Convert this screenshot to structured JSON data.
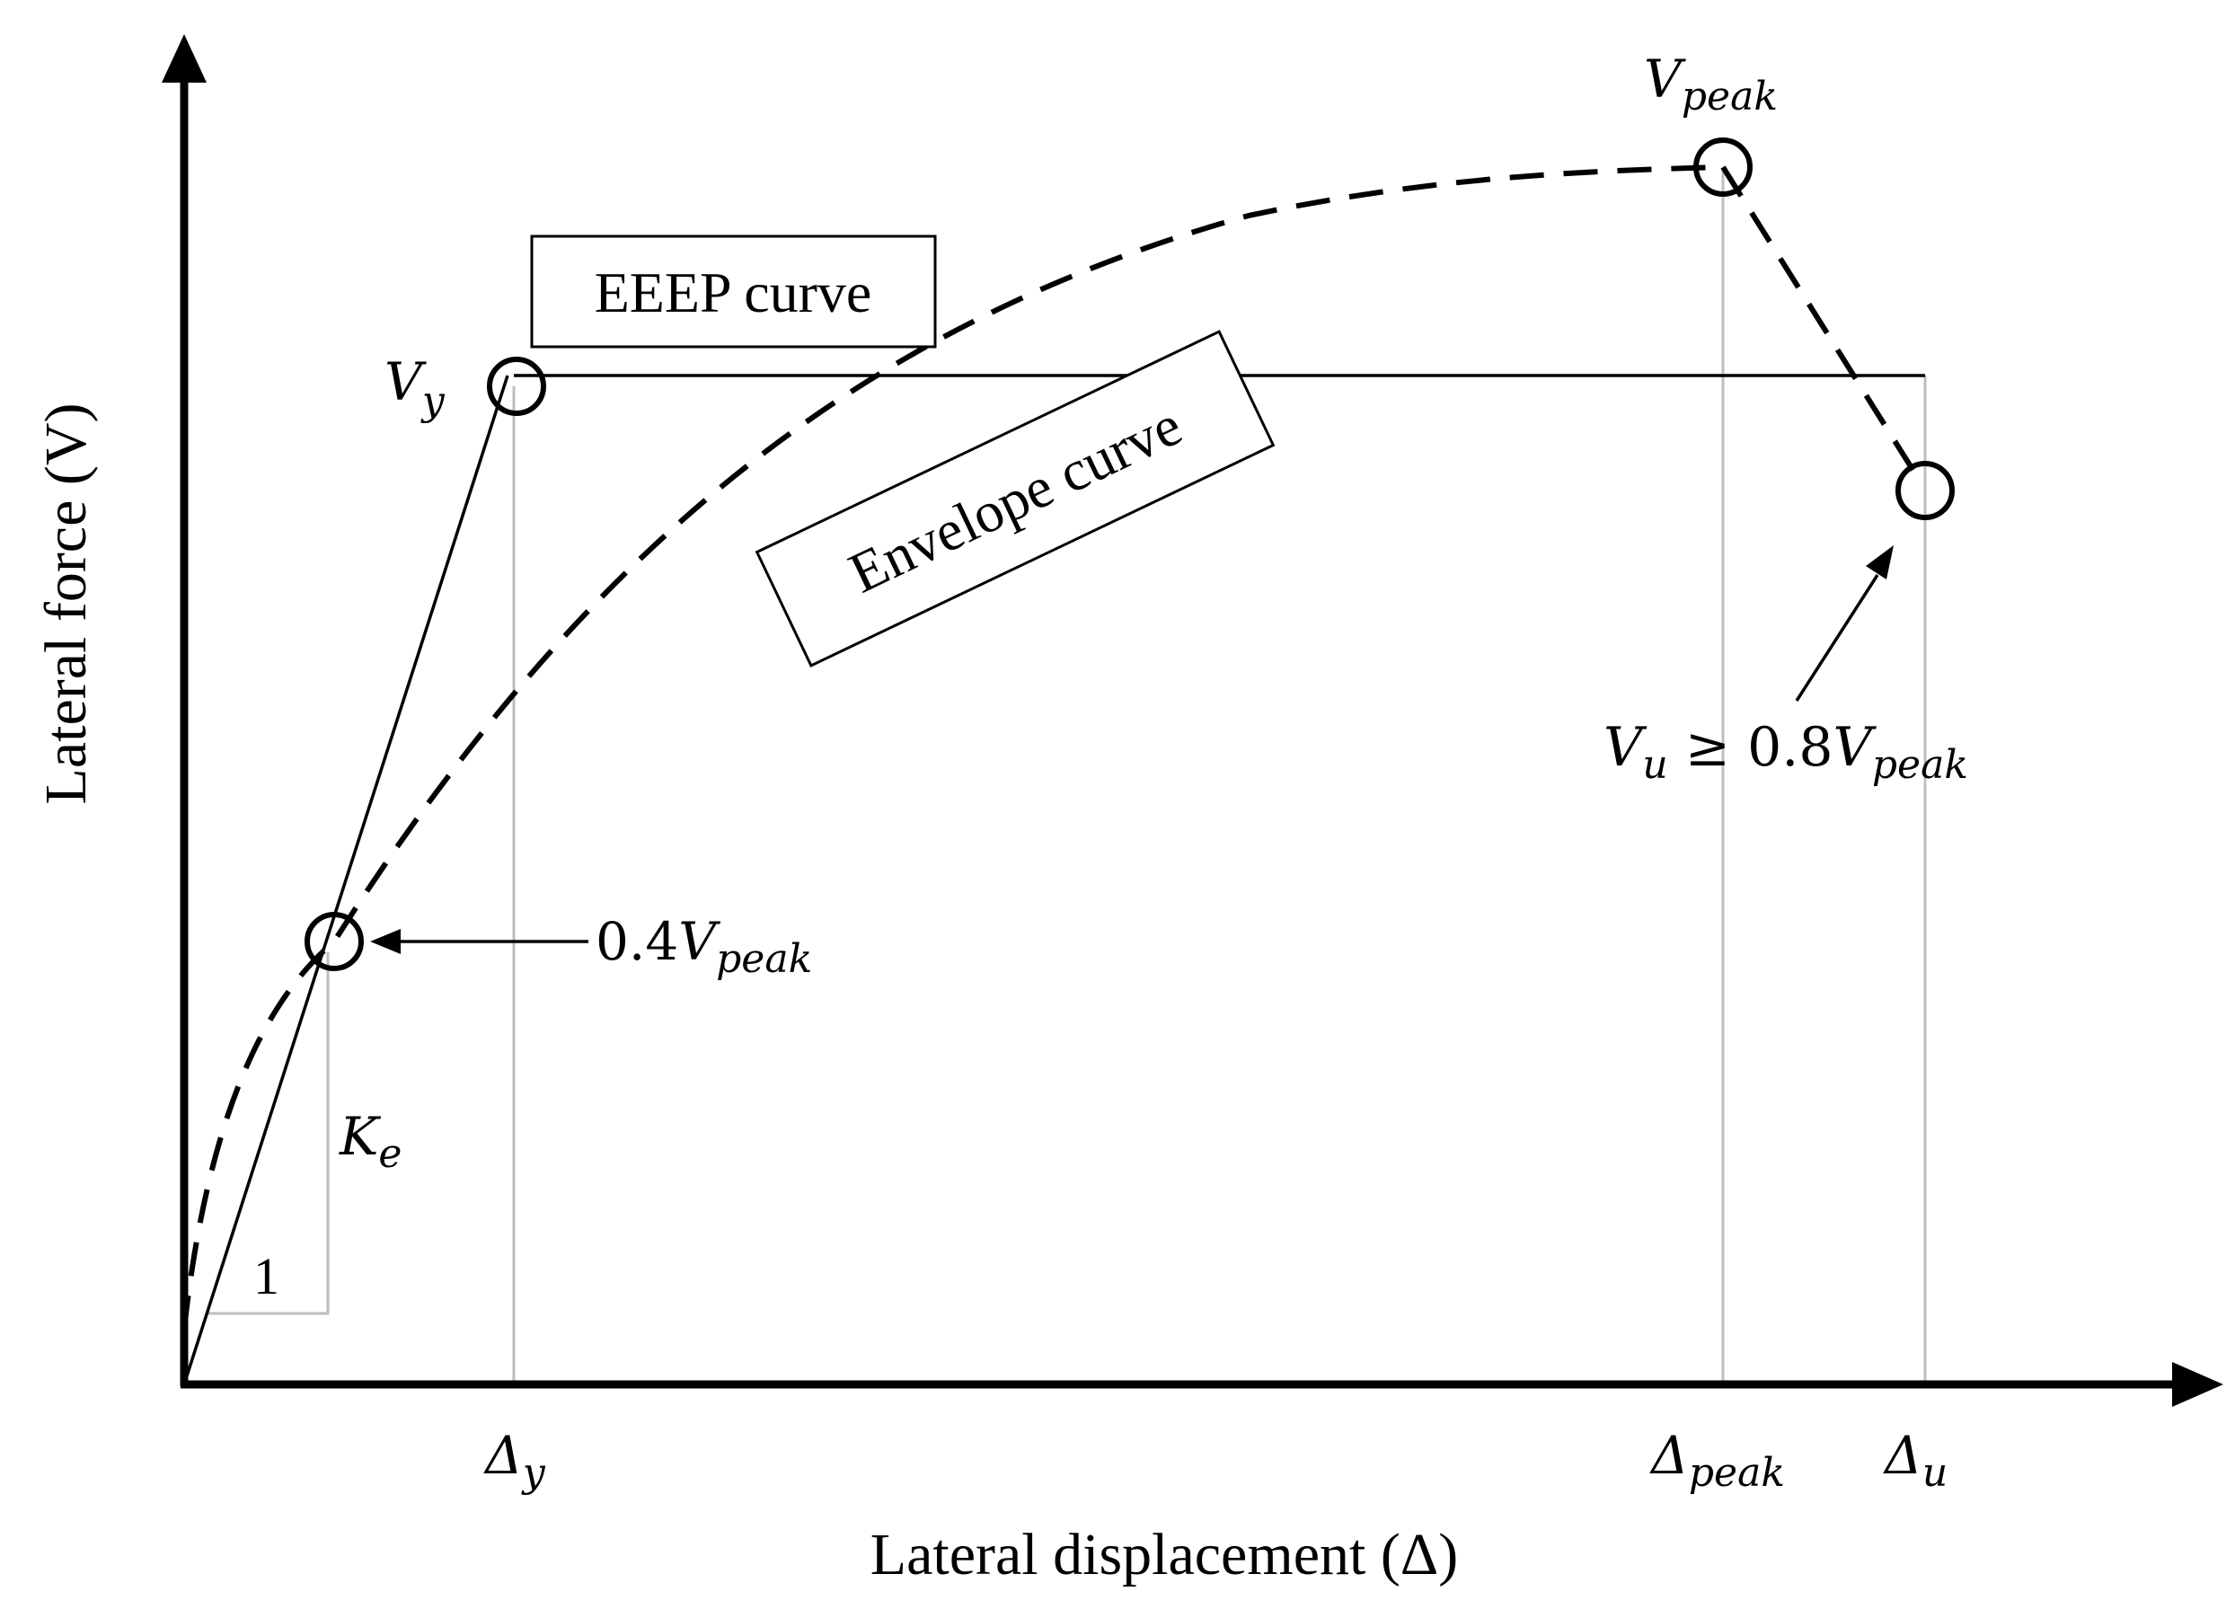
{
  "axes": {
    "y_label": "Lateral force (V)",
    "x_label": "Lateral displacement (Δ)"
  },
  "boxes": {
    "eeep": "EEEP curve",
    "envelope": "Envelope curve"
  },
  "points": {
    "vy": {
      "main": "V",
      "sub": "y"
    },
    "vpeak": {
      "main": "V",
      "sub": "peak"
    },
    "vu": {
      "main": "V",
      "sub": "u",
      "relation": " ≥ 0.8",
      "main2": "V",
      "sub2": "peak"
    },
    "p04": {
      "prefix": "0.4",
      "main": "V",
      "sub": "peak"
    },
    "ke": {
      "main": "K",
      "sub": "e"
    },
    "one": "1"
  },
  "ticks": {
    "dy": {
      "main": "Δ",
      "sub": "y"
    },
    "dpeak": {
      "main": "Δ",
      "sub": "peak"
    },
    "du": {
      "main": "Δ",
      "sub": "u"
    }
  },
  "colors": {
    "ink": "#000000",
    "guide": "#bdbdbd"
  }
}
